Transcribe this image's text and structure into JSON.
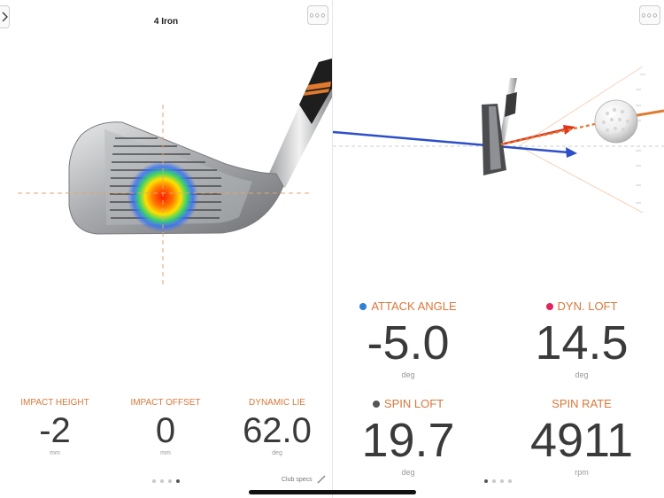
{
  "left_panel": {
    "title": "4 Iron",
    "metrics": [
      {
        "label": "IMPACT HEIGHT",
        "value": "-2",
        "unit": "mm"
      },
      {
        "label": "IMPACT OFFSET",
        "value": "0",
        "unit": "mm"
      },
      {
        "label": "DYNAMIC LIE",
        "value": "62.0",
        "unit": "deg"
      }
    ],
    "club_specs_label": "Club specs",
    "page_count": 4,
    "active_page_index": 3
  },
  "right_panel": {
    "metrics": [
      {
        "label": "ATTACK ANGLE",
        "value": "-5.0",
        "unit": "deg",
        "dot_color": "#2f7ed8"
      },
      {
        "label": "DYN. LOFT",
        "value": "14.5",
        "unit": "deg",
        "dot_color": "#e0245e"
      },
      {
        "label": "SPIN LOFT",
        "value": "19.7",
        "unit": "deg",
        "dot_color": "#555555"
      },
      {
        "label": "SPIN RATE",
        "value": "4911",
        "unit": "rpm"
      }
    ],
    "page_count": 4,
    "active_page_index": 0
  },
  "icons": {
    "back": "chevron-right-icon",
    "more": "more-icon",
    "edit": "pencil-icon"
  },
  "colors": {
    "accent": "#d9773a",
    "value_text": "#3a3a3a",
    "attack_arrow": "#2c4fc8",
    "loft_arrow": "#e0321c"
  }
}
